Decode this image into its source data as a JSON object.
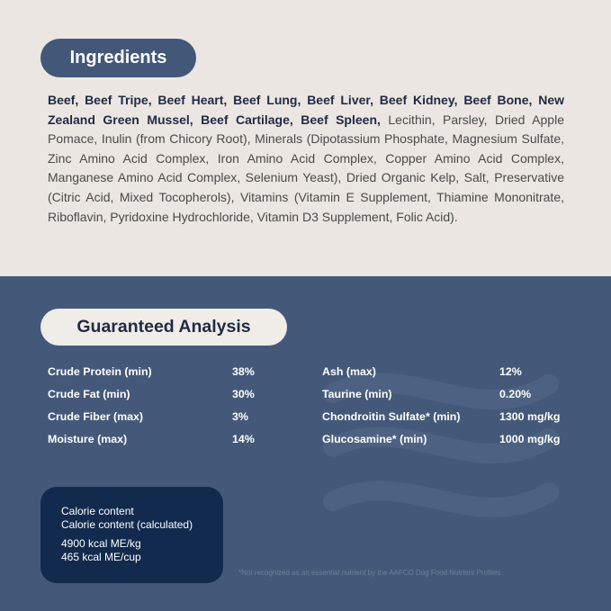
{
  "ingredients": {
    "title": "Ingredients",
    "bold_text": "Beef, Beef Tripe, Beef Heart, Beef Lung, Beef Liver, Beef Kidney, Beef Bone, New Zealand Green Mussel, Beef Cartilage, Beef Spleen,",
    "regular_text": " Lecithin, Parsley, Dried Apple Pomace, Inulin (from Chicory Root), Minerals (Dipotassium Phosphate, Magnesium Sulfate, Zinc Amino Acid Complex, Iron Amino Acid Complex, Copper Amino Acid Complex, Manganese Amino Acid Complex, Selenium Yeast), Dried Organic Kelp, Salt, Preservative (Citric Acid, Mixed Tocopherols), Vitamins (Vitamin E Supplement, Thiamine Mononitrate, Riboflavin, Pyridoxine Hydrochloride, Vitamin D3 Supplement, Folic Acid)."
  },
  "analysis": {
    "title": "Guaranteed Analysis",
    "left": [
      {
        "label": "Crude Protein (min)",
        "value": "38%"
      },
      {
        "label": "Crude Fat (min)",
        "value": "30%"
      },
      {
        "label": "Crude Fiber (max)",
        "value": "3%"
      },
      {
        "label": "Moisture (max)",
        "value": "14%"
      }
    ],
    "right": [
      {
        "label": "Ash (max)",
        "value": "12%"
      },
      {
        "label": "Taurine (min)",
        "value": "0.20%"
      },
      {
        "label": "Chondroitin Sulfate* (min)",
        "value": "1300 mg/kg"
      },
      {
        "label": "Glucosamine* (min)",
        "value": "1000 mg/kg"
      }
    ]
  },
  "calorie": {
    "line1": "Calorie content",
    "line2": "Calorie content (calculated)",
    "line3": "4900 kcal ME/kg",
    "line4": "465 kcal ME/cup"
  },
  "footnote": "*Not recognized as an essential nutrient by the AAFCO Dog Food Nutrient Profiles"
}
